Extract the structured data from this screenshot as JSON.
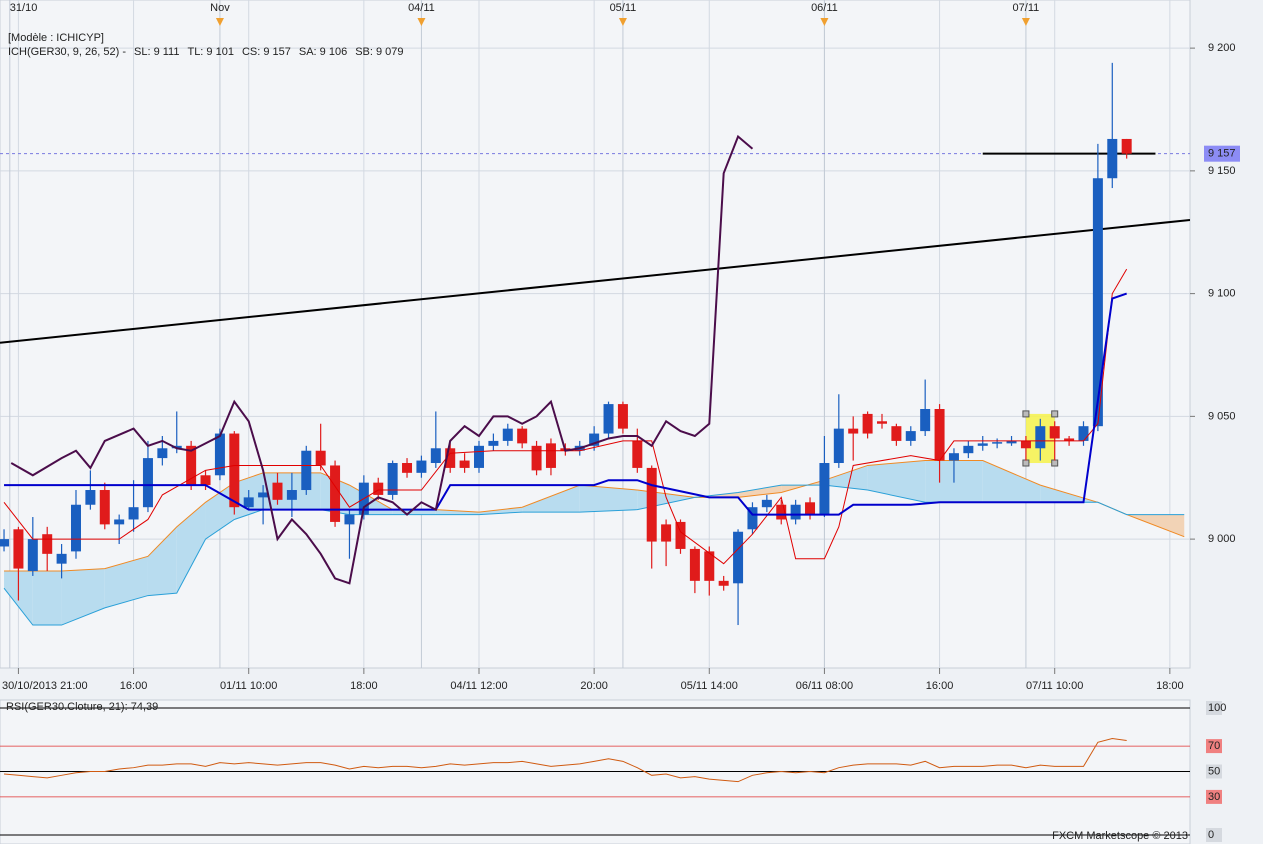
{
  "chart_data": [
    {
      "type": "candlestick",
      "title": "[Modèle : ICHICYP]",
      "legend": [
        {
          "text": "ICH(GER30, 9, 26, 52) -",
          "color": "#e00000"
        },
        {
          "text": "SL: 9 111",
          "color": "#e00000"
        },
        {
          "text": "TL: 9 101",
          "color": "#0000cc"
        },
        {
          "text": "CS: 9 157",
          "color": "#333333"
        },
        {
          "text": "SA: 9 106",
          "color": "#f08a24"
        },
        {
          "text": "SB: 9 079",
          "color": "#2aa0d8"
        }
      ],
      "up_color": "#1a5fc0",
      "down_color": "#e01b1b",
      "open": [
        8997,
        9004,
        8987,
        9002,
        8990,
        8995,
        9014,
        9020,
        9006,
        9008,
        9013,
        9033,
        9037,
        9038,
        9026,
        9026,
        9043,
        9013,
        9017,
        9023,
        9016,
        9020,
        9036,
        9030,
        9006,
        9010,
        9023,
        9018,
        9031,
        9027,
        9031,
        9037,
        9032,
        9029,
        9038,
        9040,
        9045,
        9038,
        9039,
        9037,
        9036,
        9038,
        9043,
        9055,
        9040,
        9029,
        9006,
        9007,
        8996,
        8995,
        8983,
        8982,
        9004,
        9013,
        9014,
        9008,
        9015,
        9010,
        9031,
        9045,
        9051,
        9048,
        9046,
        9040,
        9044,
        9053,
        9032,
        9035,
        9038,
        9039,
        9039,
        9040,
        9037,
        9046,
        9041,
        9040,
        9046,
        9147,
        9163
      ],
      "high": [
        9004,
        9005,
        9009,
        9005,
        8998,
        9020,
        9028,
        9023,
        9010,
        9024,
        9040,
        9042,
        9052,
        9040,
        9028,
        9045,
        9044,
        9020,
        9022,
        9027,
        9027,
        9038,
        9047,
        9032,
        9012,
        9026,
        9025,
        9032,
        9033,
        9034,
        9052,
        9039,
        9035,
        9040,
        9043,
        9047,
        9046,
        9040,
        9041,
        9039,
        9040,
        9046,
        9056,
        9056,
        9045,
        9030,
        9008,
        9008,
        8997,
        8997,
        8985,
        9004,
        9015,
        9018,
        9016,
        9016,
        9017,
        9042,
        9059,
        9050,
        9052,
        9051,
        9047,
        9046,
        9065,
        9055,
        9037,
        9040,
        9042,
        9041,
        9042,
        9042,
        9049,
        9048,
        9042,
        9048,
        9161,
        9194,
        9163
      ],
      "low": [
        8995,
        8975,
        8985,
        8987,
        8984,
        8992,
        9012,
        9004,
        8998,
        9003,
        9011,
        9030,
        9035,
        9020,
        9020,
        9024,
        9010,
        9012,
        9006,
        9014,
        9009,
        9018,
        9028,
        9005,
        8992,
        9008,
        9016,
        9016,
        9025,
        9025,
        9029,
        9027,
        9027,
        9027,
        9036,
        9038,
        9037,
        9026,
        9026,
        9034,
        9034,
        9036,
        9041,
        9043,
        9027,
        8988,
        8989,
        8994,
        8978,
        8977,
        8979,
        8965,
        9002,
        9011,
        9006,
        9006,
        9008,
        9009,
        9029,
        9032,
        9041,
        9045,
        9038,
        9038,
        9042,
        9023,
        9023,
        9033,
        9036,
        9037,
        9038,
        9032,
        9032,
        9032,
        9038,
        9038,
        9044,
        9143,
        9155
      ],
      "close": [
        9000,
        8988,
        9000,
        8994,
        8994,
        9014,
        9020,
        9006,
        9008,
        9013,
        9033,
        9037,
        9038,
        9022,
        9022,
        9043,
        9013,
        9017,
        9019,
        9016,
        9020,
        9036,
        9030,
        9007,
        9010,
        9023,
        9018,
        9031,
        9027,
        9032,
        9037,
        9029,
        9029,
        9038,
        9040,
        9045,
        9039,
        9028,
        9029,
        9036,
        9038,
        9043,
        9055,
        9045,
        9029,
        8999,
        8999,
        8996,
        8983,
        8983,
        8981,
        9003,
        9013,
        9016,
        9008,
        9014,
        9010,
        9031,
        9045,
        9043,
        9043,
        9047,
        9040,
        9044,
        9053,
        9032,
        9035,
        9038,
        9039,
        9039.5,
        9040,
        9037,
        9046,
        9041,
        9040,
        9046,
        9147,
        9163,
        9157
      ],
      "series": [
        {
          "color": "#e00000",
          "width": 1,
          "x": [
            0,
            2,
            4,
            8,
            10,
            11,
            14,
            16,
            19,
            22,
            24,
            26,
            29,
            31,
            34,
            40,
            43,
            45,
            46,
            47,
            50,
            52,
            54,
            55,
            57,
            58,
            59,
            63,
            65,
            66,
            75,
            76,
            77,
            78
          ],
          "values": [
            9015,
            9000,
            9000,
            9000,
            9008,
            9018,
            9028,
            9030,
            9030,
            9030,
            9013,
            9020,
            9020,
            9035,
            9036,
            9036,
            9040,
            9040,
            9017,
            9003,
            8990,
            9002,
            9017,
            8992,
            8992,
            9005,
            9030,
            9034,
            9032,
            9040,
            9040,
            9047,
            9100,
            9110
          ]
        },
        {
          "color": "#0000cc",
          "width": 2,
          "x": [
            0,
            14,
            17,
            30,
            31,
            41,
            42,
            44,
            45,
            49,
            51,
            52,
            58,
            59,
            63,
            65,
            75,
            77,
            78
          ],
          "values": [
            9022,
            9022,
            9012,
            9012,
            9022,
            9022,
            9024,
            9024,
            9022,
            9017,
            9017,
            9010,
            9010,
            9014,
            9014,
            9015,
            9015,
            9098,
            9100
          ]
        },
        {
          "color": "#4b0d4b",
          "width": 2,
          "x": [
            0.5,
            2,
            4,
            5,
            6,
            7,
            9,
            10,
            11,
            12,
            13,
            15,
            16,
            17,
            18,
            19,
            20,
            21,
            22,
            23,
            24,
            25,
            26,
            27,
            28,
            29,
            30,
            31,
            32,
            33,
            34,
            35,
            36,
            37,
            38,
            39,
            40,
            41,
            42,
            43,
            44,
            45,
            46,
            47,
            48,
            49,
            50,
            51,
            52
          ],
          "values": [
            9031,
            9026,
            9033,
            9036,
            9029,
            9040,
            9045,
            9038,
            9040,
            9037,
            9036,
            9042,
            9056,
            9048,
            9028,
            9000,
            9008,
            9002,
            8994,
            8984,
            8982,
            9013,
            9017,
            9015,
            9010,
            9015,
            9012,
            9040,
            9046,
            9042,
            9050,
            9050,
            9047,
            9050,
            9056,
            9036,
            9037,
            9039,
            9041,
            9042,
            9042,
            9038,
            9048,
            9044,
            9042,
            9047,
            9149,
            9164,
            9159
          ]
        }
      ],
      "cloud": {
        "x": [
          0,
          2,
          4,
          7,
          10,
          12,
          14,
          16,
          18,
          22,
          24,
          27,
          30,
          33,
          36,
          40,
          44,
          48,
          51,
          54,
          57,
          60,
          64,
          68,
          72,
          76,
          78,
          82
        ],
        "senkou_a": [
          8987,
          8987,
          8987,
          8988,
          8993,
          9005,
          9015,
          9023,
          9027,
          9027,
          9022,
          9012,
          9012,
          9011,
          9013,
          9022,
          9020,
          9017,
          9017,
          9019,
          9024,
          9030,
          9032,
          9032,
          9022,
          9015,
          9010,
          9001
        ],
        "senkou_b": [
          8980,
          8965,
          8965,
          8972,
          8977,
          8978,
          9000,
          9008,
          9012,
          9012,
          9010,
          9010,
          9010,
          9010,
          9011,
          9011,
          9012,
          9017,
          9019,
          9022,
          9022,
          9020,
          9015,
          9015,
          9015,
          9015,
          9010,
          9010
        ],
        "a_color": "#f08a24",
        "b_color": "#2aa0d8",
        "up_fill": "#b8dcef",
        "down_fill": "#f2d3b6"
      },
      "trend_lines": [
        {
          "x": [
            -0.28,
            82.4
          ],
          "values": [
            9080,
            9130
          ]
        },
        {
          "x": [
            68,
            80
          ],
          "values": [
            9157,
            9157
          ]
        }
      ],
      "highlight": {
        "x": [
          71,
          73
        ],
        "values": [
          9031,
          9051
        ]
      },
      "last_price": {
        "value": 9157,
        "label": "9 157"
      },
      "xlim": [
        -0.28,
        82.4
      ],
      "ylim": [
        8947.5,
        9219.6
      ],
      "yticks": [
        {
          "value": 9200,
          "label": "9 200"
        },
        {
          "value": 9150,
          "label": "9 150"
        },
        {
          "value": 9100,
          "label": "9 100"
        },
        {
          "value": 9050,
          "label": "9 050"
        },
        {
          "value": 9000,
          "label": "9 000"
        }
      ],
      "xticks": [
        {
          "value": 1,
          "label": "30/10/2013 21:00"
        },
        {
          "value": 9,
          "label": "16:00"
        },
        {
          "value": 17,
          "label": "01/11 10:00"
        },
        {
          "value": 25,
          "label": "18:00"
        },
        {
          "value": 33,
          "label": "04/11 12:00"
        },
        {
          "value": 41,
          "label": "20:00"
        },
        {
          "value": 49,
          "label": "05/11 14:00"
        },
        {
          "value": 57,
          "label": "06/11 08:00"
        },
        {
          "value": 65,
          "label": "16:00"
        },
        {
          "value": 73,
          "label": "07/11 10:00"
        },
        {
          "value": 81,
          "label": "18:00"
        }
      ],
      "date_markers": [
        {
          "value": 0.4,
          "label": "31/10"
        },
        {
          "value": 15,
          "label": "Nov"
        },
        {
          "value": 29,
          "label": "04/11"
        },
        {
          "value": 43,
          "label": "05/11"
        },
        {
          "value": 57,
          "label": "06/11"
        },
        {
          "value": 71,
          "label": "07/11"
        }
      ],
      "grid": true
    },
    {
      "type": "line",
      "title": "RSI(GER30.Cloture, 21): 74,39",
      "color": "#d05a10",
      "values": [
        48,
        47,
        46,
        45,
        47,
        49,
        50,
        50,
        52,
        53,
        55,
        55,
        56,
        56,
        54,
        57,
        56,
        57,
        56,
        55,
        56,
        57,
        57,
        55,
        52,
        54,
        53,
        54,
        54,
        53,
        54,
        56,
        55,
        56,
        57,
        57,
        58,
        56,
        54,
        55,
        56,
        58,
        60,
        58,
        53,
        47,
        48,
        45,
        46,
        44,
        43,
        42,
        47,
        49,
        50,
        49,
        50,
        49,
        53,
        55,
        56,
        56,
        56,
        55,
        58,
        53,
        54,
        54,
        54,
        55,
        55,
        53,
        55,
        54,
        54,
        54,
        73,
        76,
        74.39
      ],
      "ylim": [
        0,
        100
      ],
      "yticks": [
        100,
        70,
        50,
        30,
        0
      ],
      "ytick_colors": [
        "#000000",
        "#e03030",
        "#000000",
        "#e03030",
        "#000000"
      ],
      "footer": "FXCM Marketscope © 2013"
    }
  ]
}
